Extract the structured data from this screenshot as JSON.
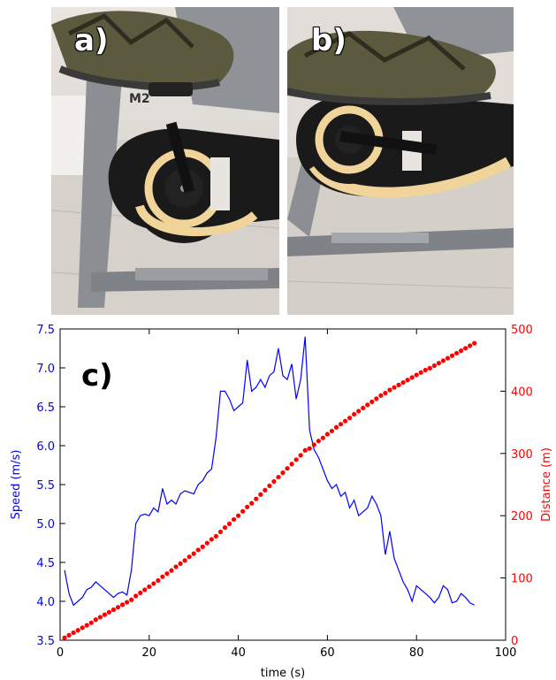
{
  "panels": {
    "a": "a)",
    "b": "b)",
    "c": "c)"
  },
  "photo_a": {
    "brand_text": "M2"
  },
  "colors": {
    "speed": "#0000ff",
    "distance": "#ff0000",
    "frame": "#8b8f94",
    "flywheel_black": "#1a1a1a",
    "flywheel_cream": "#f0d49a",
    "floor": "#d8d4cf"
  },
  "chart_data": {
    "type": "line",
    "xlabel": "time (s)",
    "ylabel": "Speed (m/s)",
    "y2label": "Distance (m)",
    "xlim": [
      0,
      100
    ],
    "ylim": [
      3.5,
      7.5
    ],
    "y2lim": [
      0,
      500
    ],
    "xticks": [
      "0",
      "20",
      "40",
      "60",
      "80",
      "100"
    ],
    "yticks": [
      "3.5",
      "4.0",
      "4.5",
      "5.0",
      "5.5",
      "6.0",
      "6.5",
      "7.0",
      "7.5"
    ],
    "y2ticks": [
      "0",
      "100",
      "200",
      "300",
      "400",
      "500"
    ],
    "grid": false,
    "series": [
      {
        "axis": "left",
        "style": "line",
        "x": [
          1,
          2,
          3,
          4,
          5,
          6,
          7,
          8,
          9,
          10,
          11,
          12,
          13,
          14,
          15,
          16,
          17,
          18,
          19,
          20,
          21,
          22,
          23,
          24,
          25,
          26,
          27,
          28,
          29,
          30,
          31,
          32,
          33,
          34,
          35,
          36,
          37,
          38,
          39,
          40,
          41,
          42,
          43,
          44,
          45,
          46,
          47,
          48,
          49,
          50,
          51,
          52,
          53,
          54,
          55,
          56,
          57,
          58,
          59,
          60,
          61,
          62,
          63,
          64,
          65,
          66,
          67,
          68,
          69,
          70,
          71,
          72,
          73,
          74,
          75,
          76,
          77,
          78,
          79,
          80,
          81,
          82,
          83,
          84,
          85,
          86,
          87,
          88,
          89,
          90,
          91,
          92,
          93
        ],
        "values": [
          4.4,
          4.1,
          3.95,
          4.0,
          4.05,
          4.15,
          4.18,
          4.25,
          4.2,
          4.15,
          4.1,
          4.05,
          4.1,
          4.12,
          4.08,
          4.4,
          5.0,
          5.1,
          5.12,
          5.1,
          5.2,
          5.15,
          5.45,
          5.25,
          5.3,
          5.25,
          5.38,
          5.42,
          5.4,
          5.38,
          5.5,
          5.55,
          5.65,
          5.7,
          6.1,
          6.7,
          6.7,
          6.6,
          6.45,
          6.5,
          6.55,
          7.1,
          6.7,
          6.75,
          6.85,
          6.75,
          6.9,
          6.95,
          7.25,
          6.9,
          6.85,
          7.05,
          6.6,
          6.85,
          7.4,
          6.2,
          5.95,
          5.85,
          5.7,
          5.55,
          5.45,
          5.5,
          5.35,
          5.4,
          5.2,
          5.3,
          5.1,
          5.15,
          5.2,
          5.35,
          5.25,
          5.1,
          4.6,
          4.9,
          4.55,
          4.4,
          4.25,
          4.15,
          4.0,
          4.2,
          4.15,
          4.1,
          4.05,
          3.98,
          4.05,
          4.2,
          4.15,
          3.98,
          4.0,
          4.1,
          4.05,
          3.98,
          3.95
        ]
      },
      {
        "axis": "right",
        "style": "points",
        "x": [
          1,
          2,
          3,
          4,
          5,
          6,
          7,
          8,
          9,
          10,
          11,
          12,
          13,
          14,
          15,
          16,
          17,
          18,
          19,
          20,
          21,
          22,
          23,
          24,
          25,
          26,
          27,
          28,
          29,
          30,
          31,
          32,
          33,
          34,
          35,
          36,
          37,
          38,
          39,
          40,
          41,
          42,
          43,
          44,
          45,
          46,
          47,
          48,
          49,
          50,
          51,
          52,
          53,
          54,
          55,
          56,
          57,
          58,
          59,
          60,
          61,
          62,
          63,
          64,
          65,
          66,
          67,
          68,
          69,
          70,
          71,
          72,
          73,
          74,
          75,
          76,
          77,
          78,
          79,
          80,
          81,
          82,
          83,
          84,
          85,
          86,
          87,
          88,
          89,
          90,
          91,
          92,
          93
        ],
        "values": [
          4,
          8,
          12,
          16,
          20,
          24,
          28,
          33,
          37,
          41,
          45,
          49,
          53,
          57,
          61,
          65,
          71,
          76,
          81,
          86,
          91,
          96,
          102,
          107,
          112,
          118,
          123,
          128,
          134,
          139,
          145,
          150,
          156,
          162,
          167,
          174,
          181,
          187,
          194,
          200,
          207,
          214,
          220,
          227,
          234,
          241,
          248,
          255,
          262,
          269,
          276,
          283,
          290,
          297,
          305,
          308,
          314,
          320,
          325,
          331,
          336,
          342,
          347,
          352,
          357,
          363,
          368,
          373,
          378,
          383,
          388,
          393,
          397,
          402,
          406,
          410,
          414,
          418,
          422,
          426,
          430,
          434,
          437,
          441,
          445,
          449,
          453,
          457,
          461,
          465,
          469,
          473,
          477
        ]
      }
    ]
  }
}
